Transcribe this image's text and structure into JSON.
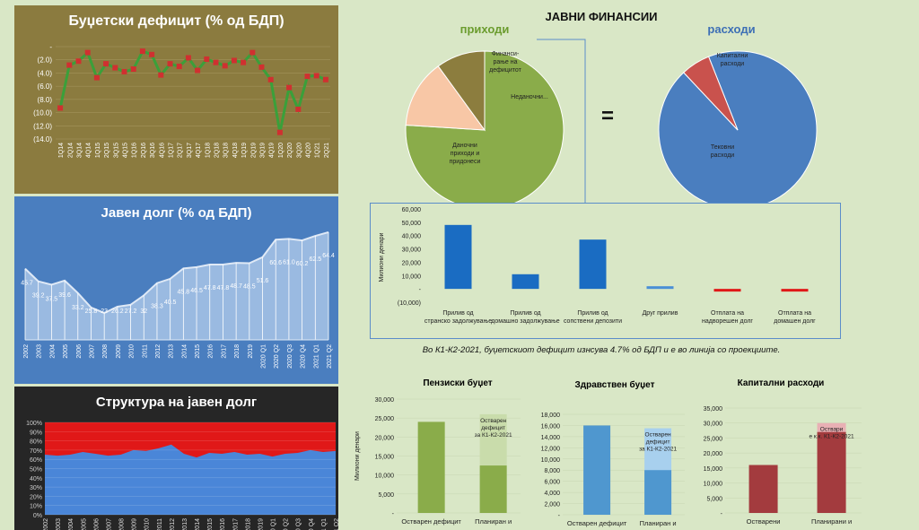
{
  "page_title": "ЈАВНИ ФИНАНСИИ",
  "equals": "=",
  "note": "Во К1-К2-2021, буџетскиот дефицит изнсува 4.7% од БДП и е во линија со проекциите.",
  "colors": {
    "green": "#8aac4a",
    "blue": "#4a7ebf",
    "red": "#c00000",
    "orange": "#f8c7a6",
    "olive": "#8c7d3e",
    "bar_blue": "#1a6cc2",
    "dark_red": "#a33b3e"
  },
  "chart_data": [
    {
      "id": "deficit",
      "type": "line",
      "title": "Буџетски дефицит (% од БДП)",
      "ylim": [
        -14,
        0
      ],
      "y_ticks": [
        "-",
        "(2.0)",
        "(4.0)",
        "(6.0)",
        "(8.0)",
        "(10.0)",
        "(12.0)",
        "(14.0)"
      ],
      "x": [
        "1Q14",
        "2Q14",
        "3Q14",
        "4Q14",
        "1Q15",
        "2Q15",
        "3Q15",
        "4Q15",
        "1Q16",
        "2Q16",
        "3Q16",
        "4Q16",
        "1Q17",
        "2Q17",
        "3Q17",
        "4Q17",
        "1Q18",
        "2Q18",
        "3Q18",
        "4Q18",
        "1Q19",
        "2Q19",
        "3Q19",
        "4Q19",
        "1Q20",
        "2Q20",
        "3Q20",
        "4Q20",
        "1Q21",
        "2Q21"
      ],
      "values": [
        -9.3,
        -2.8,
        -2.2,
        -0.9,
        -4.7,
        -2.6,
        -3.2,
        -3.8,
        -3.4,
        -0.7,
        -1.2,
        -4.3,
        -2.6,
        -3.0,
        -1.7,
        -3.6,
        -1.9,
        -2.4,
        -2.9,
        -2.1,
        -2.4,
        -0.9,
        -3.1,
        -5.0,
        -13.0,
        -6.2,
        -9.5,
        -4.5,
        -4.4,
        -5.0
      ]
    },
    {
      "id": "debt",
      "type": "area",
      "title": "Јавен долг (% од БДП)",
      "x": [
        "2002",
        "2003",
        "2004",
        "2005",
        "2006",
        "2007",
        "2008",
        "2009",
        "2010",
        "2011",
        "2012",
        "2013",
        "2014",
        "2015",
        "2016",
        "2017",
        "2018",
        "2019",
        "2020 Q1",
        "2020 Q2",
        "2020 Q3",
        "2020 Q4",
        "2021 Q1",
        "2021 Q2"
      ],
      "values": [
        45.7,
        39.2,
        37.5,
        39.6,
        33.2,
        25.8,
        23,
        26.2,
        27.2,
        32,
        38.3,
        40.5,
        45.8,
        46.5,
        47.8,
        47.8,
        48.7,
        48.5,
        51.6,
        60.6,
        61.0,
        60.2,
        62.5,
        64.4
      ],
      "labels": [
        "45.7",
        "39.2",
        "37.5",
        "39.6",
        "33.2",
        "25.8",
        "23",
        "26.2",
        "27.2",
        "32",
        "38.3",
        "40.5",
        "45.8",
        "46.5",
        "47.8",
        "47.8",
        "48.7",
        "48.5",
        "51.6",
        "60.6",
        "61.0",
        "60.2",
        "62.5",
        "64.4"
      ]
    },
    {
      "id": "structure",
      "type": "area",
      "title": "Структура на јавен долг",
      "y_ticks": [
        "100%",
        "90%",
        "80%",
        "70%",
        "60%",
        "50%",
        "40%",
        "30%",
        "20%",
        "10%",
        "0%"
      ],
      "x": [
        "2002",
        "2003",
        "2004",
        "2005",
        "2006",
        "2007",
        "2008",
        "2009",
        "2010",
        "2011",
        "2012",
        "2013",
        "2014",
        "2015",
        "2016",
        "2017",
        "2018",
        "2019",
        "2020 Q1",
        "2020 Q2",
        "2020 Q3",
        "2020 Q4",
        "2021 Q1",
        "2021 Q2"
      ],
      "values": [
        65,
        64,
        65,
        68,
        66,
        64,
        65,
        70,
        69,
        72,
        76,
        66,
        62,
        67,
        66,
        68,
        65,
        66,
        63,
        66,
        67,
        70,
        68,
        69
      ]
    },
    {
      "id": "revenue",
      "type": "pie",
      "title": "приходи",
      "slices": [
        {
          "label": "Даночни приходи и придонеси",
          "value": 76
        },
        {
          "label": "Финанси-рање на дефицитот",
          "value": 14
        },
        {
          "label": "Неданочни...",
          "value": 10
        }
      ]
    },
    {
      "id": "expenditure",
      "type": "pie",
      "title": "расходи",
      "slices": [
        {
          "label": "Тековни расходи",
          "value": 94
        },
        {
          "label": "Капитални расходи",
          "value": 6
        }
      ]
    },
    {
      "id": "financing",
      "type": "bar",
      "ylabel": "Милиони денари",
      "ylim": [
        -10000,
        60000
      ],
      "y_ticks": [
        "60,000",
        "50,000",
        "40,000",
        "30,000",
        "20,000",
        "10,000",
        "-",
        "(10,000)"
      ],
      "categories": [
        "Прилив од странско задолжување",
        "Прилив од домашно задолжување",
        "Прилив од сопствени депозити",
        "Друг прилив",
        "Отплата на надворешен долг",
        "Отплата на домашен долг"
      ],
      "values": [
        48000,
        11000,
        37000,
        2000,
        -1500,
        -2000
      ]
    },
    {
      "id": "pension",
      "type": "bar",
      "title": "Пензиски буџет",
      "ylabel": "Милиони денари",
      "ylim": [
        0,
        30000
      ],
      "y_ticks": [
        "30,000",
        "25,000",
        "20,000",
        "15,000",
        "10,000",
        "5,000",
        "-"
      ],
      "categories": [
        "Остварен дефицит",
        "Планиран и"
      ],
      "values": [
        24000,
        12500
      ],
      "planned_total": 26000,
      "annotation": "Остварен дефицит за К1-К2-2021"
    },
    {
      "id": "health",
      "type": "bar",
      "title": "Здравствен буџет",
      "ylim": [
        0,
        18000
      ],
      "y_ticks": [
        "18,000",
        "16,000",
        "14,000",
        "12,000",
        "10,000",
        "8,000",
        "6,000",
        "4,000",
        "2,000",
        "-"
      ],
      "categories": [
        "Остварен дефицит",
        "Планиран и"
      ],
      "values": [
        16000,
        8000
      ],
      "planned_total": 15500,
      "annotation": "Остварен дефицит за К1-К2-2021"
    },
    {
      "id": "capital",
      "type": "bar",
      "title": "Капитални расходи",
      "ylim": [
        0,
        35000
      ],
      "y_ticks": [
        "35,000",
        "30,000",
        "25,000",
        "20,000",
        "15,000",
        "10,000",
        "5,000",
        "-"
      ],
      "categories": [
        "Остварени",
        "Планирани и"
      ],
      "values": [
        16000,
        27000
      ],
      "planned_total": 30000,
      "annotation": "Оствари е к.к. К1-К2-2021"
    }
  ]
}
